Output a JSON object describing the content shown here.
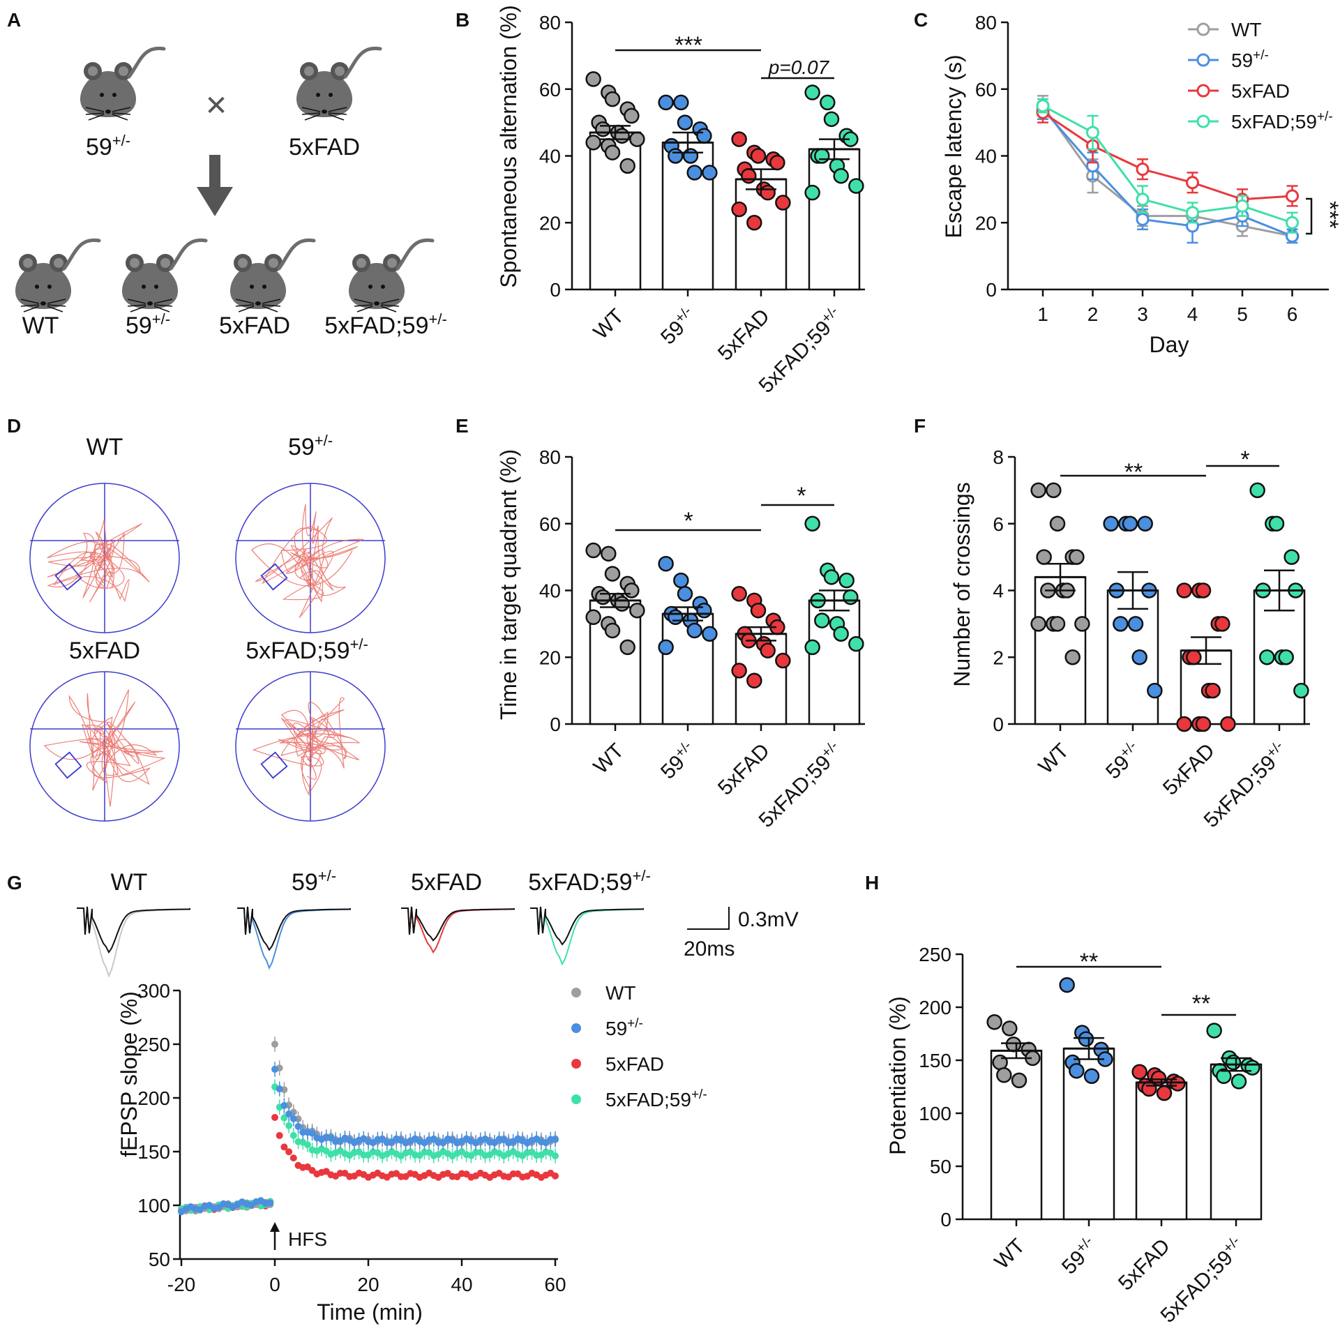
{
  "colors": {
    "WT": "#9e9e9e",
    "59": "#4a8fe0",
    "5xFAD": "#e8383d",
    "5xFAD;59": "#3fe0a8",
    "ink": "#111111",
    "maze": "#3a3ad0",
    "path": "#e96a60"
  },
  "groups": [
    {
      "key": "WT",
      "name": "WT",
      "sup": ""
    },
    {
      "key": "59",
      "name": "59",
      "sup": "+/-"
    },
    {
      "key": "5xFAD",
      "name": "5xFAD",
      "sup": ""
    },
    {
      "key": "5xFAD;59",
      "name": "5xFAD;59",
      "sup": "+/-"
    }
  ],
  "panels": {
    "A": {
      "letter": "A",
      "cross_symbol": "✕",
      "parents": [
        {
          "name": "59",
          "sup": "+/-"
        },
        {
          "name": "5xFAD",
          "sup": ""
        }
      ],
      "offspring": [
        {
          "name": "WT",
          "sup": ""
        },
        {
          "name": "59",
          "sup": "+/-"
        },
        {
          "name": "5xFAD",
          "sup": ""
        },
        {
          "name": "5xFAD;59",
          "sup": "+/-"
        }
      ]
    },
    "B": {
      "letter": "B",
      "ylabel": "Spontaneous alternation (%)",
      "yticks": [
        "0",
        "20",
        "40",
        "60",
        "80"
      ],
      "sig": [
        {
          "text": "***",
          "italic": false
        },
        {
          "text": "p=0.07",
          "italic": true
        }
      ]
    },
    "C": {
      "letter": "C",
      "ylabel": "Escape latency (s)",
      "xlabel": "Day",
      "yticks": [
        "0",
        "20",
        "40",
        "60",
        "80"
      ],
      "xticks": [
        "1",
        "2",
        "3",
        "4",
        "5",
        "6"
      ],
      "sig": "***"
    },
    "D": {
      "letter": "D",
      "titles": [
        {
          "name": "WT",
          "sup": ""
        },
        {
          "name": "59",
          "sup": "+/-"
        },
        {
          "name": "5xFAD",
          "sup": ""
        },
        {
          "name": "5xFAD;59",
          "sup": "+/-"
        }
      ]
    },
    "E": {
      "letter": "E",
      "ylabel": "Time in target quadrant (%)",
      "yticks": [
        "0",
        "20",
        "40",
        "60",
        "80"
      ],
      "sig": [
        "*",
        "*"
      ]
    },
    "F": {
      "letter": "F",
      "ylabel": "Number of crossings",
      "yticks": [
        "0",
        "2",
        "4",
        "6",
        "8"
      ],
      "sig": [
        "**",
        "*"
      ]
    },
    "G": {
      "letter": "G",
      "scale_v": "0.3mV",
      "scale_t": "20ms",
      "ylabel": "fEPSP slope (%)",
      "xlabel": "Time (min)",
      "yticks": [
        "50",
        "100",
        "150",
        "200",
        "250",
        "300"
      ],
      "xticks": [
        "-20",
        "0",
        "20",
        "40",
        "60"
      ],
      "arrow_label": "HFS",
      "trace_titles": [
        {
          "name": "WT",
          "sup": ""
        },
        {
          "name": "59",
          "sup": "+/-"
        },
        {
          "name": "5xFAD",
          "sup": ""
        },
        {
          "name": "5xFAD;59",
          "sup": "+/-"
        }
      ]
    },
    "H": {
      "letter": "H",
      "ylabel": "Potentiation (%)",
      "yticks": [
        "0",
        "50",
        "100",
        "150",
        "200",
        "250"
      ],
      "sig": [
        "**",
        "**"
      ]
    }
  },
  "chart_data": [
    {
      "panel": "B",
      "type": "bar",
      "title": "",
      "xlabel": "",
      "ylabel": "Spontaneous alternation (%)",
      "ylim": [
        0,
        80
      ],
      "categories": [
        "WT",
        "59+/-",
        "5xFAD",
        "5xFAD;59+/-"
      ],
      "values": [
        47,
        44,
        33,
        42
      ],
      "sem": [
        2,
        3,
        3,
        3
      ],
      "points": [
        [
          63,
          59,
          57,
          54,
          52,
          50,
          48,
          47,
          46,
          45,
          44,
          43,
          41,
          37
        ],
        [
          56,
          56,
          50,
          48,
          46,
          43,
          40,
          40,
          35,
          35
        ],
        [
          45,
          41,
          40,
          39,
          38,
          36,
          34,
          30,
          29,
          26,
          24,
          20
        ],
        [
          59,
          56,
          51,
          46,
          45,
          40,
          40,
          37,
          34,
          31,
          29
        ]
      ],
      "annotations": [
        {
          "from": "WT",
          "to": "5xFAD",
          "text": "***"
        },
        {
          "from": "5xFAD",
          "to": "5xFAD;59+/-",
          "text": "p=0.07"
        }
      ]
    },
    {
      "panel": "C",
      "type": "line",
      "title": "",
      "xlabel": "Day",
      "ylabel": "Escape latency (s)",
      "ylim": [
        0,
        80
      ],
      "x": [
        1,
        2,
        3,
        4,
        5,
        6
      ],
      "series": [
        {
          "name": "WT",
          "values": [
            55,
            34,
            22,
            22,
            19,
            16
          ],
          "sem": [
            3,
            5,
            3,
            2,
            3,
            2
          ]
        },
        {
          "name": "59+/-",
          "values": [
            54,
            37,
            21,
            19,
            22,
            16
          ],
          "sem": [
            3,
            4,
            3,
            5,
            3,
            2
          ]
        },
        {
          "name": "5xFAD",
          "values": [
            53,
            43,
            36,
            32,
            27,
            28
          ],
          "sem": [
            3,
            5,
            3,
            3,
            3,
            3
          ]
        },
        {
          "name": "5xFAD;59+/-",
          "values": [
            55,
            47,
            27,
            23,
            25,
            20
          ],
          "sem": [
            2,
            5,
            4,
            3,
            3,
            3
          ]
        }
      ],
      "legend": [
        "WT",
        "59+/-",
        "5xFAD",
        "5xFAD;59+/-"
      ],
      "legend_position": "top-right",
      "annotations": [
        {
          "text": "***",
          "between": "5xFAD vs WT at day 6"
        }
      ]
    },
    {
      "panel": "E",
      "type": "bar",
      "title": "",
      "xlabel": "",
      "ylabel": "Time in target quadrant (%)",
      "ylim": [
        0,
        80
      ],
      "categories": [
        "WT",
        "59+/-",
        "5xFAD",
        "5xFAD;59+/-"
      ],
      "values": [
        37,
        33,
        27,
        37
      ],
      "sem": [
        2,
        2,
        2,
        3
      ],
      "points": [
        [
          52,
          51,
          45,
          42,
          40,
          39,
          38,
          37,
          36,
          34,
          32,
          30,
          28,
          23
        ],
        [
          48,
          43,
          39,
          36,
          34,
          33,
          32,
          31,
          28,
          27,
          23
        ],
        [
          39,
          37,
          34,
          31,
          29,
          27,
          25,
          24,
          22,
          19,
          16,
          13
        ],
        [
          60,
          46,
          44,
          43,
          38,
          37,
          31,
          30,
          27,
          24,
          23
        ]
      ],
      "annotations": [
        {
          "from": "WT",
          "to": "5xFAD",
          "text": "*"
        },
        {
          "from": "5xFAD",
          "to": "5xFAD;59+/-",
          "text": "*"
        }
      ]
    },
    {
      "panel": "F",
      "type": "bar",
      "title": "",
      "xlabel": "",
      "ylabel": "Number of crossings",
      "ylim": [
        0,
        8
      ],
      "categories": [
        "WT",
        "59+/-",
        "5xFAD",
        "5xFAD;59+/-"
      ],
      "values": [
        4.4,
        4.0,
        2.2,
        4.0
      ],
      "sem": [
        0.4,
        0.55,
        0.4,
        0.6
      ],
      "points": [
        [
          7,
          7,
          6,
          5,
          5,
          5,
          4,
          4,
          4,
          3,
          3,
          3,
          3,
          2
        ],
        [
          6,
          6,
          6,
          6,
          4,
          4,
          3,
          3,
          2,
          1
        ],
        [
          4,
          4,
          4,
          3,
          3,
          2,
          2,
          1,
          1,
          0,
          0,
          0,
          0
        ],
        [
          7,
          6,
          6,
          5,
          4,
          4,
          2,
          2,
          2,
          1
        ]
      ],
      "annotations": [
        {
          "from": "WT",
          "to": "5xFAD",
          "text": "**"
        },
        {
          "from": "5xFAD",
          "to": "5xFAD;59+/-",
          "text": "*"
        }
      ]
    },
    {
      "panel": "G",
      "type": "scatter",
      "title": "",
      "xlabel": "Time (min)",
      "ylabel": "fEPSP slope (%)",
      "xlim": [
        -20,
        60
      ],
      "ylim": [
        50,
        300
      ],
      "legend": [
        "WT",
        "59+/-",
        "5xFAD",
        "5xFAD;59+/-"
      ],
      "legend_position": "top-right",
      "hfs_time_min": 0,
      "series": [
        {
          "name": "WT",
          "baseline": [
            96,
            103
          ],
          "peak": 250,
          "plateau": 160
        },
        {
          "name": "59+/-",
          "baseline": [
            96,
            104
          ],
          "peak": 225,
          "plateau": 160
        },
        {
          "name": "5xFAD",
          "baseline": [
            96,
            102
          ],
          "peak": 180,
          "plateau": 128
        },
        {
          "name": "5xFAD;59+/-",
          "baseline": [
            96,
            102
          ],
          "peak": 210,
          "plateau": 148
        }
      ]
    },
    {
      "panel": "H",
      "type": "bar",
      "title": "",
      "xlabel": "",
      "ylabel": "Potentiation (%)",
      "ylim": [
        0,
        250
      ],
      "categories": [
        "WT",
        "59+/-",
        "5xFAD",
        "5xFAD;59+/-"
      ],
      "values": [
        159,
        161,
        129,
        146
      ],
      "sem": [
        7,
        10,
        3,
        6
      ],
      "points": [
        [
          186,
          180,
          165,
          160,
          152,
          148,
          136,
          131
        ],
        [
          221,
          176,
          170,
          160,
          151,
          148,
          140,
          135
        ],
        [
          139,
          136,
          133,
          130,
          128,
          126,
          123,
          119
        ],
        [
          178,
          152,
          148,
          145,
          143,
          140,
          135,
          130
        ]
      ],
      "annotations": [
        {
          "from": "WT",
          "to": "5xFAD",
          "text": "**"
        },
        {
          "from": "5xFAD",
          "to": "5xFAD;59+/-",
          "text": "**"
        }
      ]
    }
  ]
}
